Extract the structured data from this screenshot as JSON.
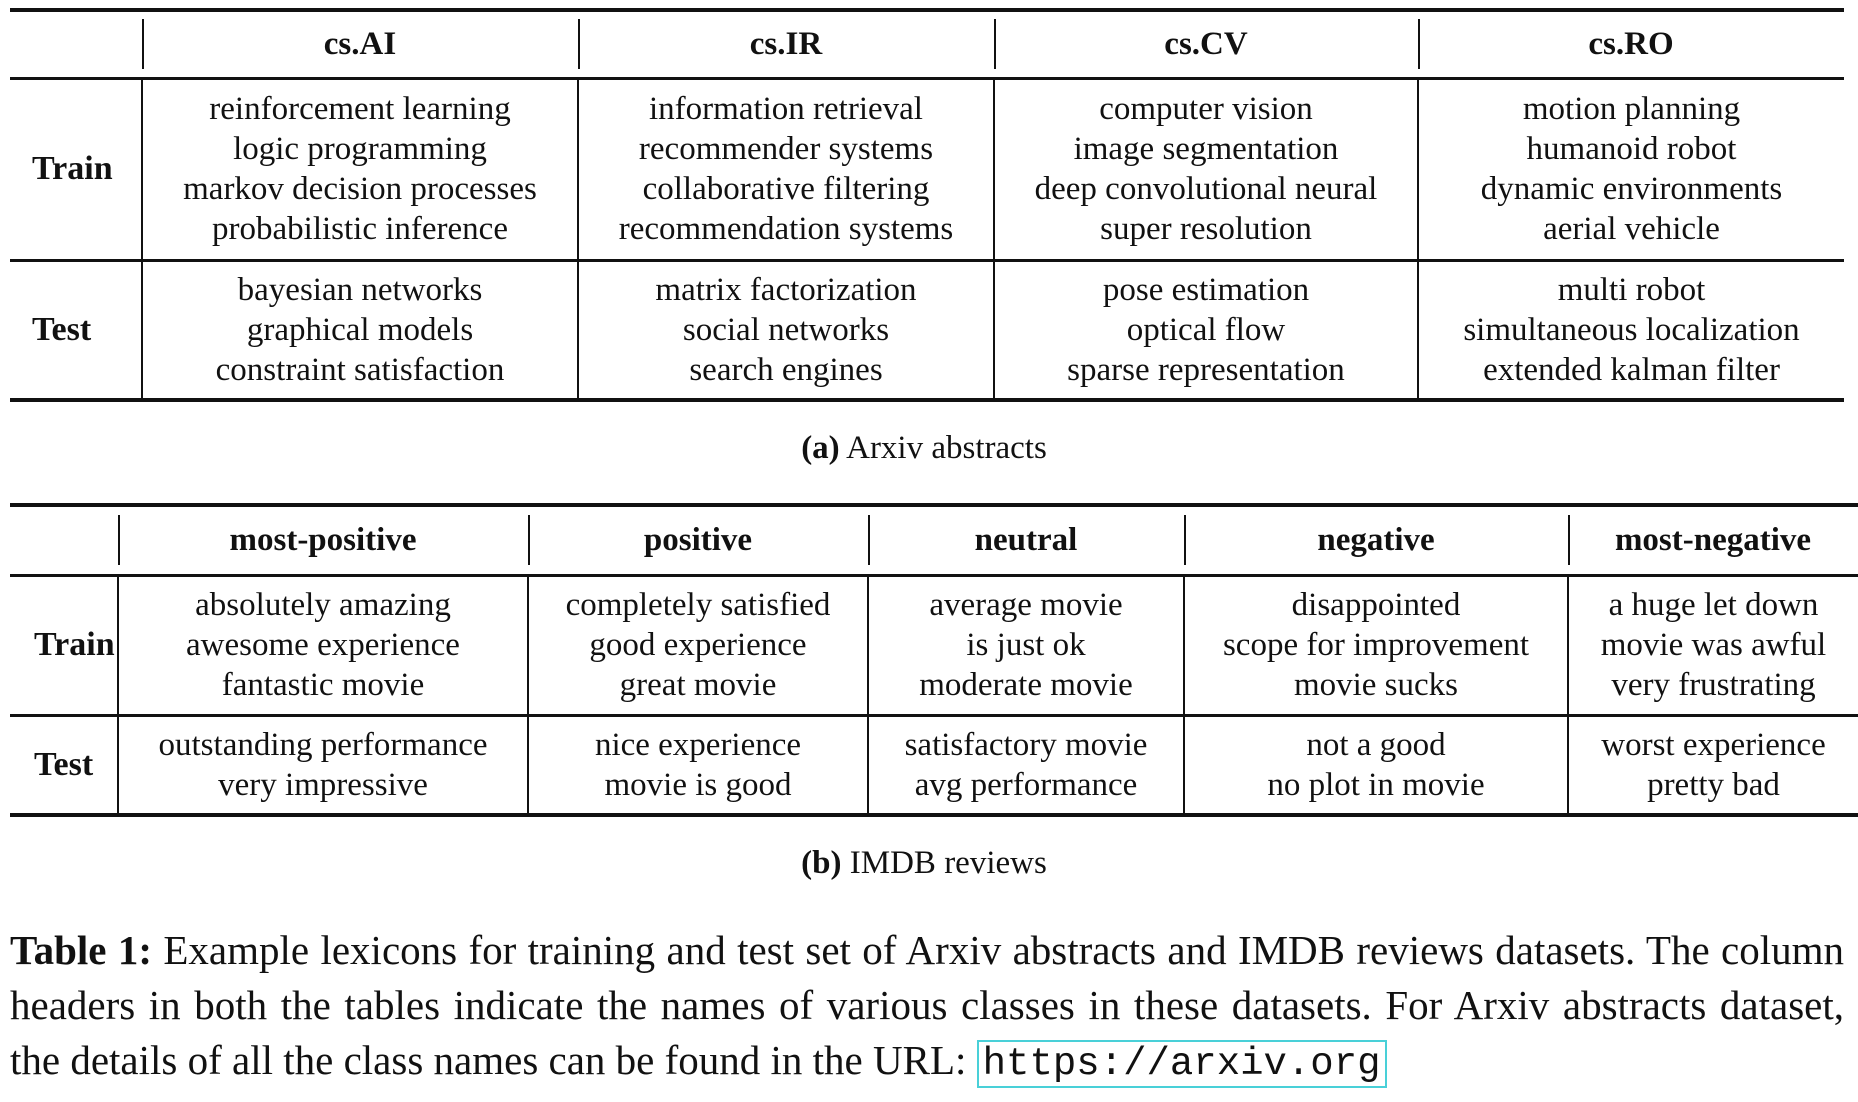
{
  "table_a": {
    "headers": [
      "cs.AI",
      "cs.IR",
      "cs.CV",
      "cs.RO"
    ],
    "rows": [
      {
        "label": "Train",
        "cells": [
          [
            "reinforcement learning",
            "logic programming",
            "markov decision processes",
            "probabilistic inference"
          ],
          [
            "information retrieval",
            "recommender systems",
            "collaborative filtering",
            "recommendation systems"
          ],
          [
            "computer vision",
            "image segmentation",
            "deep convolutional neural",
            "super resolution"
          ],
          [
            "motion planning",
            "humanoid robot",
            "dynamic environments",
            "aerial vehicle"
          ]
        ]
      },
      {
        "label": "Test",
        "cells": [
          [
            "bayesian networks",
            "graphical models",
            "constraint satisfaction"
          ],
          [
            "matrix factorization",
            "social networks",
            "search engines"
          ],
          [
            "pose estimation",
            "optical flow",
            "sparse representation"
          ],
          [
            "multi robot",
            "simultaneous localization",
            "extended kalman filter"
          ]
        ]
      }
    ],
    "caption_label": "(a)",
    "caption_text": "Arxiv abstracts"
  },
  "table_b": {
    "headers": [
      "most-positive",
      "positive",
      "neutral",
      "negative",
      "most-negative"
    ],
    "rows": [
      {
        "label": "Train",
        "cells": [
          [
            "absolutely amazing",
            "awesome experience",
            "fantastic movie"
          ],
          [
            "completely satisfied",
            "good experience",
            "great movie"
          ],
          [
            "average movie",
            "is just ok",
            "moderate movie"
          ],
          [
            "disappointed",
            "scope for improvement",
            "movie sucks"
          ],
          [
            "a huge let down",
            "movie was awful",
            "very frustrating"
          ]
        ]
      },
      {
        "label": "Test",
        "cells": [
          [
            "outstanding performance",
            "very impressive"
          ],
          [
            "nice experience",
            "movie is good"
          ],
          [
            "satisfactory movie",
            "avg performance"
          ],
          [
            "not a good",
            "no plot in movie"
          ],
          [
            "worst experience",
            "pretty bad"
          ]
        ]
      }
    ],
    "caption_label": "(b)",
    "caption_text": "IMDB reviews"
  },
  "caption": {
    "label": "Table 1:",
    "text": "Example lexicons for training and test set of Arxiv abstracts and IMDB reviews datasets. The column headers in both the tables indicate the names of various classes in these datasets. For Arxiv abstracts dataset, the details of all the class names can be found in the URL:",
    "url": "https://arxiv.org"
  }
}
